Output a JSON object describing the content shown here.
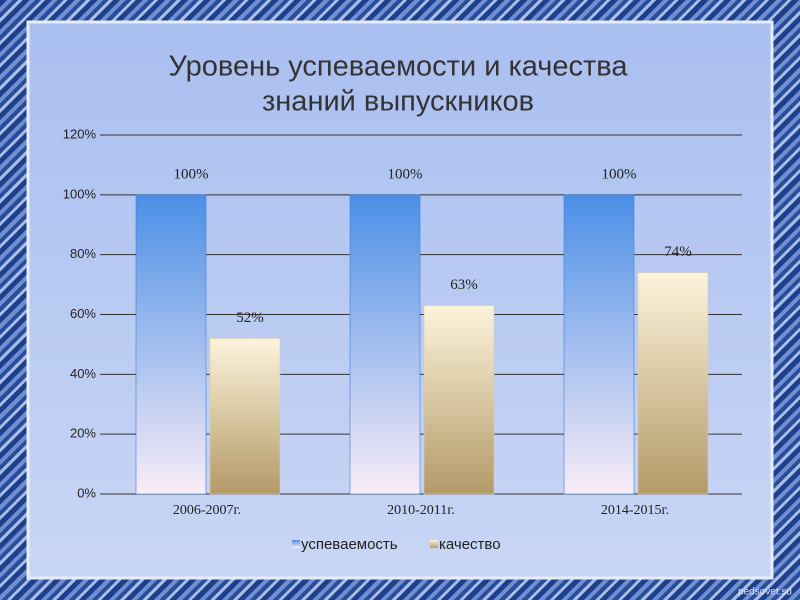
{
  "chart_data": {
    "type": "bar",
    "title": "Уровень успеваемости и качества знаний выпускников",
    "categories": [
      "2006-2007г.",
      "2010-2011г.",
      "2014-2015г."
    ],
    "series": [
      {
        "name": "успеваемость",
        "color": "#4a8fe6",
        "values": [
          100,
          100,
          100
        ],
        "value_labels": [
          "100%",
          "100%",
          "100%"
        ]
      },
      {
        "name": "качество",
        "color": "#b39a68",
        "values": [
          52,
          63,
          74
        ],
        "value_labels": [
          "52%",
          "63%",
          "74%"
        ]
      }
    ],
    "ylim": [
      0,
      120
    ],
    "yticks": [
      {
        "value": 0,
        "label": "0%"
      },
      {
        "value": 20,
        "label": "20%"
      },
      {
        "value": 40,
        "label": "40%"
      },
      {
        "value": 60,
        "label": "60%"
      },
      {
        "value": 80,
        "label": "80%"
      },
      {
        "value": 100,
        "label": "100%"
      },
      {
        "value": 120,
        "label": "120%"
      }
    ],
    "grid": true,
    "legend": "bottom",
    "watermark": "pedsovet.su"
  }
}
